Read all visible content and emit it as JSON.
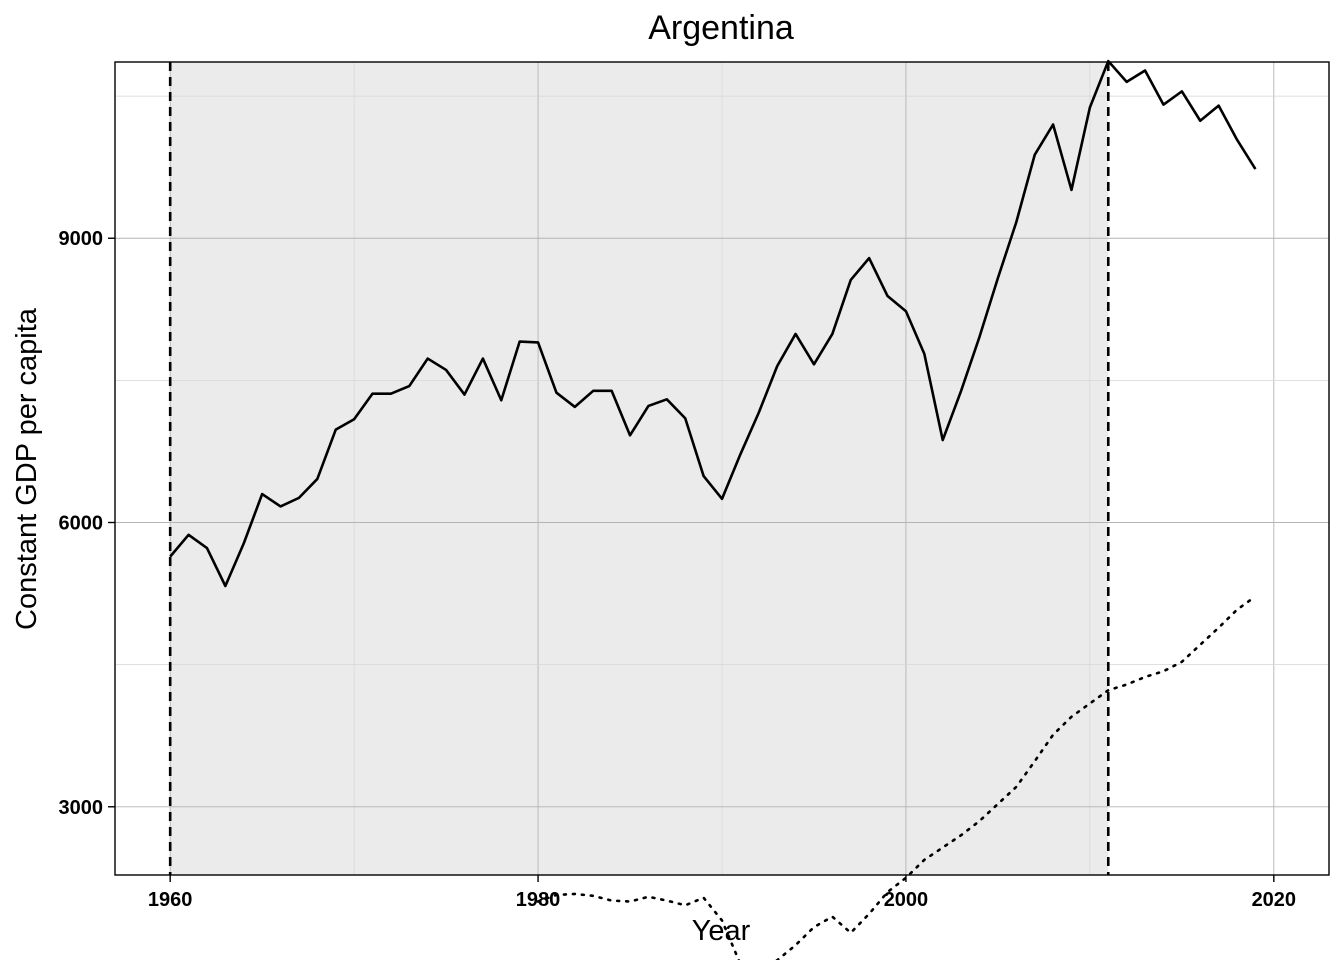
{
  "chart_data": {
    "type": "line",
    "title": "Argentina",
    "xlabel": "Year",
    "ylabel": "Constant GDP per capita",
    "xlim": [
      1957,
      2023
    ],
    "ylim": [
      2280,
      10860
    ],
    "xticks": [
      1960,
      1980,
      2000,
      2020
    ],
    "yticks": [
      3000,
      6000,
      9000
    ],
    "grid": true,
    "shaded_region": {
      "x": [
        1960,
        2011
      ],
      "color": "#ebebeb"
    },
    "vertical_lines": [
      1960,
      2011
    ],
    "series": [
      {
        "style": "solid",
        "color": "#000000",
        "x": [
          1960,
          1961,
          1962,
          1963,
          1964,
          1965,
          1966,
          1967,
          1968,
          1969,
          1970,
          1971,
          1972,
          1973,
          1974,
          1975,
          1976,
          1977,
          1978,
          1979,
          1980,
          1981,
          1982,
          1983,
          1984,
          1985,
          1986,
          1987,
          1988,
          1989,
          1990,
          1991,
          1992,
          1993,
          1994,
          1995,
          1996,
          1997,
          1998,
          1999,
          2000,
          2001,
          2002,
          2003,
          2004,
          2005,
          2006,
          2007,
          2008,
          2009,
          2010,
          2011,
          2012,
          2013,
          2014,
          2015,
          2016,
          2017,
          2018,
          2019
        ],
        "values": [
          5640,
          5870,
          5730,
          5330,
          5780,
          6300,
          6170,
          6260,
          6460,
          6980,
          7090,
          7360,
          7360,
          7440,
          7730,
          7610,
          7350,
          7730,
          7290,
          7910,
          7900,
          7370,
          7220,
          7390,
          7390,
          6920,
          7230,
          7300,
          7100,
          6490,
          6250,
          6720,
          7160,
          7650,
          7990,
          7670,
          7990,
          8560,
          8790,
          8390,
          8230,
          7780,
          6870,
          7390,
          7960,
          8580,
          9170,
          9880,
          10200,
          9510,
          10380,
          10870,
          10650,
          10770,
          10410,
          10550,
          10240,
          10400,
          10040,
          9730
        ]
      },
      {
        "style": "dotted",
        "color": "#000000",
        "x": [
          1980,
          1981,
          1982,
          1983,
          1984,
          1985,
          1986,
          1987,
          1988,
          1989,
          1990,
          1991,
          1992,
          1993,
          1994,
          1995,
          1996,
          1997,
          1998,
          1999,
          2000,
          2001,
          2002,
          2003,
          2004,
          2005,
          2006,
          2007,
          2008,
          2009,
          2010,
          2011,
          2012,
          2013,
          2014,
          2015,
          2016,
          2017,
          2018,
          2019
        ],
        "values": [
          2000,
          2070,
          2080,
          2060,
          2010,
          2000,
          2050,
          2010,
          1960,
          2040,
          1800,
          1340,
          1260,
          1380,
          1540,
          1730,
          1840,
          1670,
          1870,
          2100,
          2250,
          2440,
          2570,
          2700,
          2850,
          3030,
          3210,
          3480,
          3760,
          3950,
          4090,
          4230,
          4290,
          4370,
          4430,
          4530,
          4710,
          4890,
          5080,
          5220
        ]
      }
    ]
  }
}
